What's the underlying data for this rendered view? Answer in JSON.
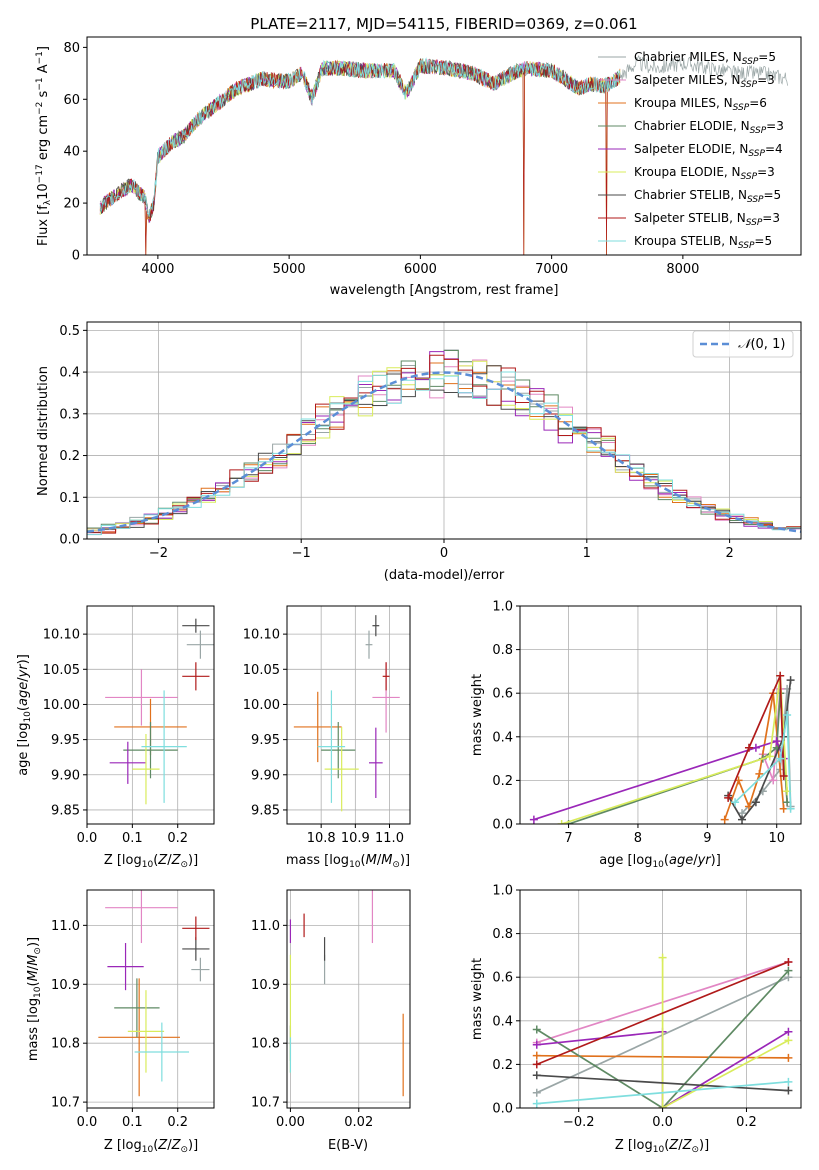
{
  "figure": {
    "title": "PLATE=2117, MJD=54115, FIBERID=0369, z=0.061"
  },
  "series_styles": [
    {
      "name": "Chabrier MILES",
      "nssp": "5",
      "color": "#9aa6a6"
    },
    {
      "name": "Salpeter MILES",
      "nssp": "3",
      "color": "#e286c4"
    },
    {
      "name": "Kroupa MILES",
      "nssp": "6",
      "color": "#e0711c"
    },
    {
      "name": "Chabrier ELODIE",
      "nssp": "3",
      "color": "#5f8a64"
    },
    {
      "name": "Salpeter ELODIE",
      "nssp": "4",
      "color": "#9a27b8"
    },
    {
      "name": "Kroupa ELODIE",
      "nssp": "3",
      "color": "#d9ec5c"
    },
    {
      "name": "Chabrier STELIB",
      "nssp": "5",
      "color": "#4a4a4a"
    },
    {
      "name": "Salpeter STELIB",
      "nssp": "3",
      "color": "#b01a1a"
    },
    {
      "name": "Kroupa STELIB",
      "nssp": "5",
      "color": "#7fdede"
    }
  ],
  "chart_data": [
    {
      "id": "spectrum",
      "type": "line",
      "title": "PLATE=2117, MJD=54115, FIBERID=0369, z=0.061",
      "xlabel": "wavelength [Angstrom, rest frame]",
      "ylabel": "Flux [f_λ 10^-17 erg cm^-2 s^-1 A^-1]",
      "xlim": [
        3460,
        8900
      ],
      "ylim": [
        0,
        84
      ],
      "xticks": [
        4000,
        5000,
        6000,
        7000,
        8000
      ],
      "yticks": [
        0,
        20,
        40,
        60,
        80
      ],
      "grid": false,
      "legend_position": "right",
      "spectrum_anchors": {
        "x": [
          3560,
          3600,
          3700,
          3800,
          3900,
          3930,
          3970,
          4000,
          4100,
          4200,
          4300,
          4400,
          4500,
          4600,
          4700,
          4800,
          4900,
          5000,
          5100,
          5175,
          5250,
          5400,
          5600,
          5800,
          5890,
          6000,
          6200,
          6400,
          6563,
          6700,
          6800,
          7000,
          7100,
          7200,
          7300,
          7400,
          7500,
          7650,
          7800,
          8000,
          8200,
          8400,
          8600,
          8800
        ],
        "y": [
          18,
          20,
          24,
          27,
          22,
          14,
          20,
          38,
          43,
          46,
          52,
          56,
          60,
          64,
          66,
          68,
          67,
          67,
          70,
          60,
          72,
          72,
          71,
          71,
          62,
          73,
          72,
          70,
          66,
          70,
          72,
          71,
          68,
          64,
          66,
          65,
          68,
          74,
          72,
          74,
          72,
          70,
          70,
          68
        ]
      },
      "dropouts_x": [
        3910,
        6790,
        7420
      ]
    },
    {
      "id": "residual_distribution",
      "type": "area",
      "xlabel": "(data-model)/error",
      "ylabel": "Normed distribution",
      "xlim": [
        -2.5,
        2.5
      ],
      "ylim": [
        0,
        0.52
      ],
      "xticks": [
        -2,
        -1,
        0,
        1,
        2
      ],
      "yticks": [
        0,
        0.1,
        0.2,
        0.3,
        0.4,
        0.5
      ],
      "grid": true,
      "legend_position": "top-right",
      "reference_curve": {
        "name": "N(0,1)",
        "mean": 0,
        "sigma": 1
      },
      "bin_width": 0.1
    },
    {
      "id": "age_vs_Z",
      "type": "scatter",
      "xlabel": "Z [log10(Z/Z⊙)]",
      "ylabel": "age [log10(age/yr)]",
      "xlim": [
        0.0,
        0.28
      ],
      "ylim": [
        9.83,
        10.14
      ],
      "xticks": [
        0.0,
        0.1,
        0.2
      ],
      "yticks": [
        9.85,
        9.9,
        9.95,
        10.0,
        10.05,
        10.1
      ],
      "grid": true,
      "points": [
        {
          "x": 0.25,
          "y": 10.085,
          "xerr": 0.03,
          "yerr": 0.02
        },
        {
          "x": 0.12,
          "y": 10.01,
          "xerr": 0.08,
          "yerr": 0.04
        },
        {
          "x": 0.14,
          "y": 9.968,
          "xerr": 0.08,
          "yerr": 0.04
        },
        {
          "x": 0.14,
          "y": 9.935,
          "xerr": 0.06,
          "yerr": 0.04
        },
        {
          "x": 0.09,
          "y": 9.917,
          "xerr": 0.04,
          "yerr": 0.03
        },
        {
          "x": 0.13,
          "y": 9.908,
          "xerr": 0.03,
          "yerr": 0.05
        },
        {
          "x": 0.24,
          "y": 10.112,
          "xerr": 0.03,
          "yerr": 0.01
        },
        {
          "x": 0.24,
          "y": 10.04,
          "xerr": 0.03,
          "yerr": 0.02
        },
        {
          "x": 0.17,
          "y": 9.94,
          "xerr": 0.05,
          "yerr": 0.08
        }
      ]
    },
    {
      "id": "age_vs_mass",
      "type": "scatter",
      "xlabel": "mass [log10(M/M⊙)]",
      "ylabel": "",
      "xlim": [
        10.7,
        11.06
      ],
      "ylim": [
        9.83,
        10.14
      ],
      "xticks": [
        10.8,
        10.9,
        11.0
      ],
      "yticks": [
        9.85,
        9.9,
        9.95,
        10.0,
        10.05,
        10.1
      ],
      "grid": true,
      "points": [
        {
          "x": 10.94,
          "y": 10.085,
          "xerr": 0.01,
          "yerr": 0.02
        },
        {
          "x": 10.99,
          "y": 10.01,
          "xerr": 0.04,
          "yerr": 0.05
        },
        {
          "x": 10.79,
          "y": 9.968,
          "xerr": 0.07,
          "yerr": 0.05
        },
        {
          "x": 10.85,
          "y": 9.935,
          "xerr": 0.05,
          "yerr": 0.04
        },
        {
          "x": 10.96,
          "y": 9.917,
          "xerr": 0.02,
          "yerr": 0.05
        },
        {
          "x": 10.86,
          "y": 9.908,
          "xerr": 0.05,
          "yerr": 0.06
        },
        {
          "x": 10.96,
          "y": 10.112,
          "xerr": 0.01,
          "yerr": 0.015
        },
        {
          "x": 10.99,
          "y": 10.04,
          "xerr": 0.01,
          "yerr": 0.02
        },
        {
          "x": 10.83,
          "y": 9.94,
          "xerr": 0.04,
          "yerr": 0.08
        }
      ]
    },
    {
      "id": "mass_weight_vs_age",
      "type": "line",
      "xlabel": "age [log10(age/yr)]",
      "ylabel": "mass weight",
      "xlim": [
        6.3,
        10.35
      ],
      "ylim": [
        0,
        1.0
      ],
      "xticks": [
        7,
        8,
        9,
        10
      ],
      "yticks": [
        0.0,
        0.2,
        0.4,
        0.6,
        0.8,
        1.0
      ],
      "grid": true,
      "series": [
        {
          "x": [
            9.5,
            9.8,
            10.05,
            10.15,
            10.2
          ],
          "y": [
            0.05,
            0.15,
            0.25,
            0.62,
            0.08
          ]
        },
        {
          "x": [
            9.8,
            9.95,
            10.05,
            10.15
          ],
          "y": [
            0.32,
            0.2,
            0.62,
            0.1
          ]
        },
        {
          "x": [
            9.25,
            9.45,
            9.6,
            9.75,
            9.95,
            10.1
          ],
          "y": [
            0.02,
            0.2,
            0.08,
            0.23,
            0.6,
            0.07
          ]
        },
        {
          "x": [
            7.0,
            9.8,
            10.0,
            10.05,
            10.15
          ],
          "y": [
            0.0,
            0.3,
            0.35,
            0.6,
            0.1
          ]
        },
        {
          "x": [
            6.5,
            9.7,
            10.0,
            10.1
          ],
          "y": [
            0.02,
            0.35,
            0.38,
            0.3
          ]
        },
        {
          "x": [
            6.9,
            9.9,
            10.05,
            10.15
          ],
          "y": [
            0.0,
            0.31,
            0.68,
            0.15
          ]
        },
        {
          "x": [
            9.3,
            9.5,
            9.7,
            10.1,
            10.2
          ],
          "y": [
            0.13,
            0.02,
            0.1,
            0.4,
            0.66
          ]
        },
        {
          "x": [
            9.3,
            9.6,
            10.05,
            10.1
          ],
          "y": [
            0.12,
            0.35,
            0.68,
            0.22
          ]
        },
        {
          "x": [
            9.4,
            10.05,
            10.15,
            10.2
          ],
          "y": [
            0.1,
            0.3,
            0.5,
            0.07
          ]
        }
      ]
    },
    {
      "id": "mass_vs_Z",
      "type": "scatter",
      "xlabel": "Z [log10(Z/Z⊙)]",
      "ylabel": "mass [log10(M/M⊙)]",
      "xlim": [
        0.0,
        0.28
      ],
      "ylim": [
        10.69,
        11.06
      ],
      "xticks": [
        0.0,
        0.1,
        0.2
      ],
      "yticks": [
        10.7,
        10.8,
        10.9,
        11.0
      ],
      "grid": true,
      "points": [
        {
          "x": 0.25,
          "y": 10.925,
          "xerr": 0.02,
          "yerr": 0.02
        },
        {
          "x": 0.12,
          "y": 11.03,
          "xerr": 0.08,
          "yerr": 0.06
        },
        {
          "x": 0.115,
          "y": 10.81,
          "xerr": 0.09,
          "yerr": 0.1
        },
        {
          "x": 0.11,
          "y": 10.86,
          "xerr": 0.05,
          "yerr": 0.05
        },
        {
          "x": 0.085,
          "y": 10.93,
          "xerr": 0.04,
          "yerr": 0.04
        },
        {
          "x": 0.13,
          "y": 10.82,
          "xerr": 0.04,
          "yerr": 0.07
        },
        {
          "x": 0.24,
          "y": 10.96,
          "xerr": 0.03,
          "yerr": 0.02
        },
        {
          "x": 0.24,
          "y": 10.995,
          "xerr": 0.03,
          "yerr": 0.02
        },
        {
          "x": 0.165,
          "y": 10.785,
          "xerr": 0.06,
          "yerr": 0.05
        }
      ]
    },
    {
      "id": "mass_vs_ebv",
      "type": "scatter",
      "xlabel": "E(B-V)",
      "ylabel": "",
      "xlim": [
        -0.001,
        0.035
      ],
      "ylim": [
        10.69,
        11.06
      ],
      "xticks": [
        0.0,
        0.02
      ],
      "yticks": [
        10.7,
        10.8,
        10.9,
        11.0
      ],
      "grid": true,
      "points": [
        {
          "x": 0.01,
          "y": 10.925,
          "xerr": 0,
          "yerr": 0.025
        },
        {
          "x": 0.024,
          "y": 11.03,
          "xerr": 0,
          "yerr": 0.06
        },
        {
          "x": 0.033,
          "y": 10.78,
          "xerr": 0,
          "yerr": 0.07
        },
        {
          "x": 0.0,
          "y": 10.8,
          "xerr": 0,
          "yerr": 0.03
        },
        {
          "x": 0.0,
          "y": 10.99,
          "xerr": 0,
          "yerr": 0.02
        },
        {
          "x": 0.0,
          "y": 10.85,
          "xerr": 0,
          "yerr": 0.1
        },
        {
          "x": 0.01,
          "y": 10.96,
          "xerr": 0,
          "yerr": 0.02
        },
        {
          "x": 0.004,
          "y": 11.0,
          "xerr": 0,
          "yerr": 0.02
        },
        {
          "x": 0.0,
          "y": 10.78,
          "xerr": 0,
          "yerr": 0.03
        }
      ]
    },
    {
      "id": "mass_weight_vs_Z",
      "type": "line",
      "xlabel": "Z [log10(Z/Z⊙)]",
      "ylabel": "mass weight",
      "xlim": [
        -0.34,
        0.33
      ],
      "ylim": [
        0,
        1.0
      ],
      "xticks": [
        -0.2,
        0.0,
        0.2
      ],
      "yticks": [
        0.0,
        0.2,
        0.4,
        0.6,
        0.8,
        1.0
      ],
      "grid": true,
      "series": [
        {
          "x": [
            -0.3,
            0.3
          ],
          "y": [
            0.07,
            0.6
          ]
        },
        {
          "x": [
            -0.3,
            0.3
          ],
          "y": [
            0.3,
            0.67
          ]
        },
        {
          "x": [
            -0.3,
            0.3
          ],
          "y": [
            0.24,
            0.23
          ]
        },
        {
          "x": [
            -0.3,
            0.0,
            0.3
          ],
          "y": [
            0.36,
            0.0,
            0.63
          ]
        },
        {
          "x": [
            -0.3,
            0.0,
            0.0,
            0.3
          ],
          "y": [
            0.29,
            0.35,
            0.0,
            0.35
          ]
        },
        {
          "x": [
            0.0,
            0.0,
            0.3
          ],
          "y": [
            0.69,
            0.0,
            0.31
          ]
        },
        {
          "x": [
            -0.3,
            0.3
          ],
          "y": [
            0.15,
            0.08
          ]
        },
        {
          "x": [
            -0.3,
            0.3
          ],
          "y": [
            0.2,
            0.67
          ]
        },
        {
          "x": [
            -0.3,
            0.3
          ],
          "y": [
            0.02,
            0.12
          ]
        }
      ]
    }
  ]
}
